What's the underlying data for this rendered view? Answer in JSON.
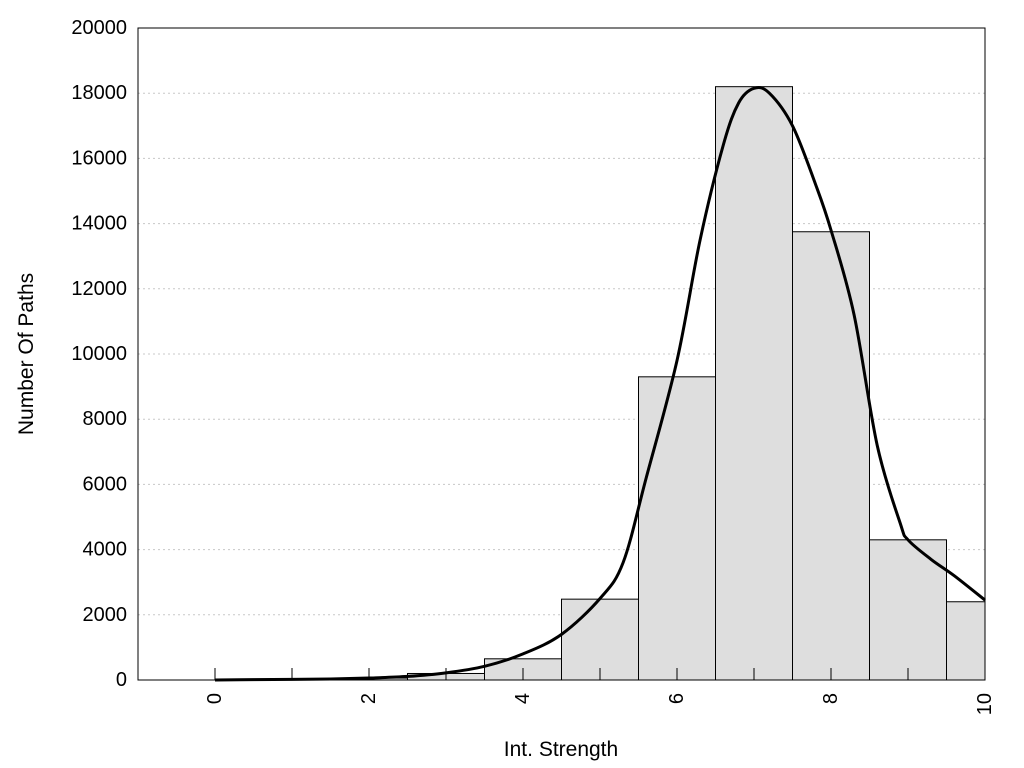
{
  "chart_data": {
    "type": "bar",
    "xlabel": "Int. Strength",
    "ylabel": "Number Of Paths",
    "xlim": [
      -1,
      10
    ],
    "ylim": [
      0,
      20000
    ],
    "xticks": [
      0,
      2,
      4,
      6,
      8,
      10
    ],
    "yticks": [
      0,
      2000,
      4000,
      6000,
      8000,
      10000,
      12000,
      14000,
      16000,
      18000,
      20000
    ],
    "grid": "horizontal dotted",
    "bar_width": 1,
    "bars": [
      {
        "x": 0,
        "value": 0
      },
      {
        "x": 1,
        "value": 0
      },
      {
        "x": 2,
        "value": 60
      },
      {
        "x": 3,
        "value": 200
      },
      {
        "x": 4,
        "value": 650
      },
      {
        "x": 5,
        "value": 2480
      },
      {
        "x": 6,
        "value": 9300
      },
      {
        "x": 7,
        "value": 18200
      },
      {
        "x": 8,
        "value": 13750
      },
      {
        "x": 9,
        "value": 4300
      },
      {
        "x": 10,
        "value": 2400
      }
    ],
    "curve": {
      "x": [
        0,
        0.5,
        1,
        1.5,
        2,
        2.5,
        3,
        3.5,
        4,
        4.5,
        5,
        5.3,
        5.6,
        6,
        6.3,
        6.6,
        6.8,
        7,
        7.2,
        7.5,
        7.8,
        8,
        8.3,
        8.6,
        8.9,
        9,
        9.3,
        9.6,
        10
      ],
      "y": [
        0,
        10,
        20,
        30,
        60,
        110,
        220,
        420,
        800,
        1400,
        2500,
        3600,
        6200,
        9800,
        13500,
        16400,
        17700,
        18150,
        18000,
        17000,
        15200,
        13800,
        11200,
        7200,
        4800,
        4300,
        3700,
        3200,
        2450
      ]
    },
    "colors": {
      "bar_fill": "#dedede",
      "bar_stroke": "#000000",
      "curve": "#000000",
      "grid": "#c8c8c8"
    }
  }
}
